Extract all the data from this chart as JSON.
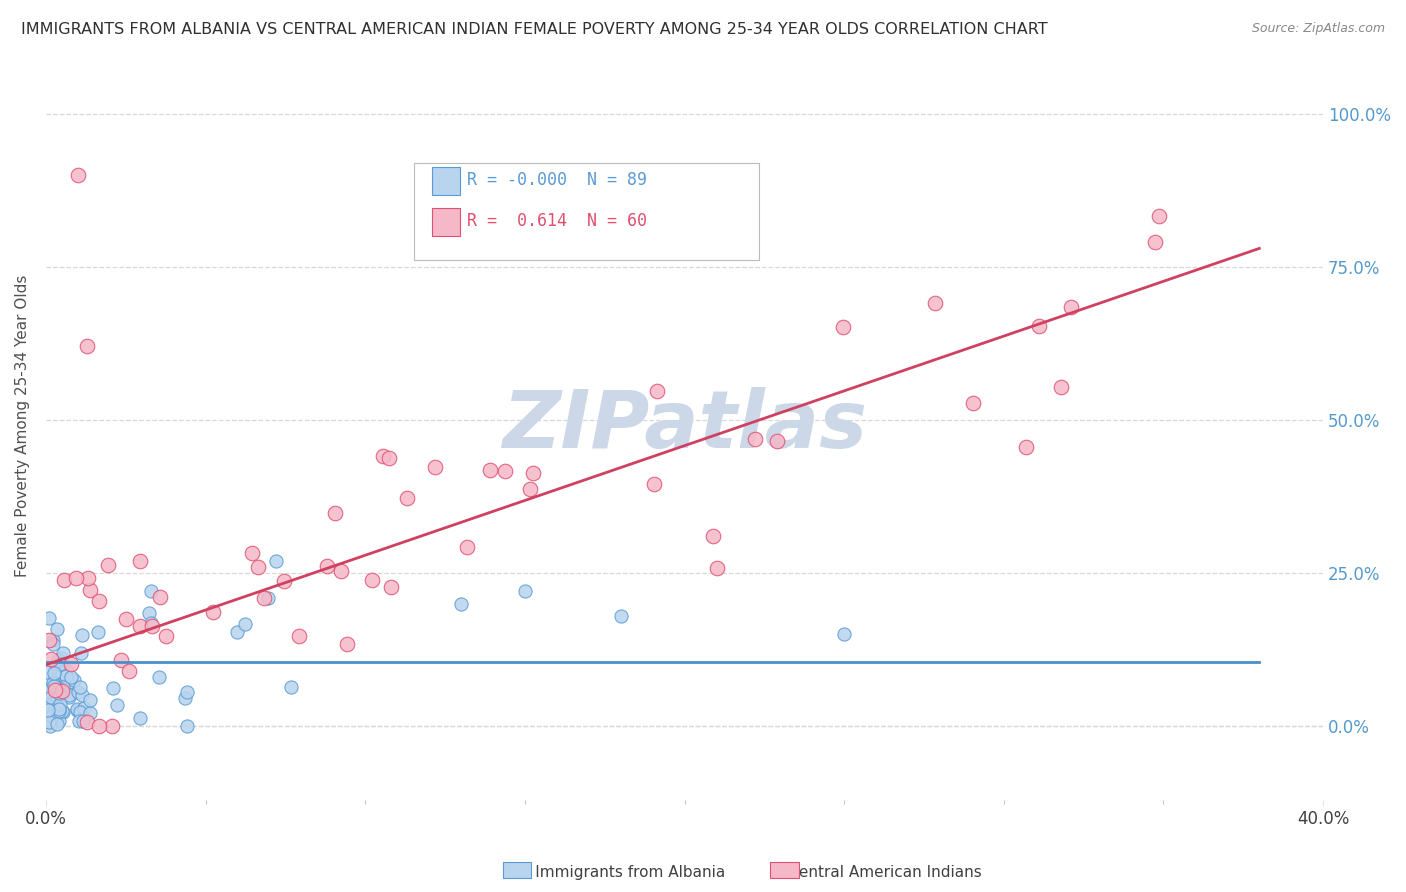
{
  "title": "IMMIGRANTS FROM ALBANIA VS CENTRAL AMERICAN INDIAN FEMALE POVERTY AMONG 25-34 YEAR OLDS CORRELATION CHART",
  "source": "Source: ZipAtlas.com",
  "ylabel": "Female Poverty Among 25-34 Year Olds",
  "xlim": [
    0.0,
    0.4
  ],
  "ylim": [
    -0.12,
    1.1
  ],
  "ytick_vals": [
    0.0,
    0.25,
    0.5,
    0.75,
    1.0
  ],
  "ytick_labels": [
    "0.0%",
    "25.0%",
    "50.0%",
    "75.0%",
    "100.0%"
  ],
  "xtick_vals": [
    0.0,
    0.4
  ],
  "xtick_labels": [
    "0.0%",
    "40.0%"
  ],
  "R_albania": -0.0,
  "N_albania": 89,
  "R_caindian": 0.614,
  "N_caindian": 60,
  "albania_fill": "#b8d4ee",
  "caindian_fill": "#f5b8c8",
  "albania_edge": "#5b9bd5",
  "caindian_edge": "#e05070",
  "albania_line": "#4a8fcc",
  "caindian_line": "#d04060",
  "watermark_text": "ZIPatlas",
  "watermark_color": "#ccd8e8",
  "legend_label_albania": "Immigrants from Albania",
  "legend_label_caindian": "Central American Indians",
  "bg_color": "#ffffff",
  "grid_color": "#d8d8d8",
  "title_color": "#303030",
  "axis_label_color": "#505050",
  "tick_label_color": "#404040",
  "right_tick_color": "#5599cc",
  "source_color": "#888888"
}
